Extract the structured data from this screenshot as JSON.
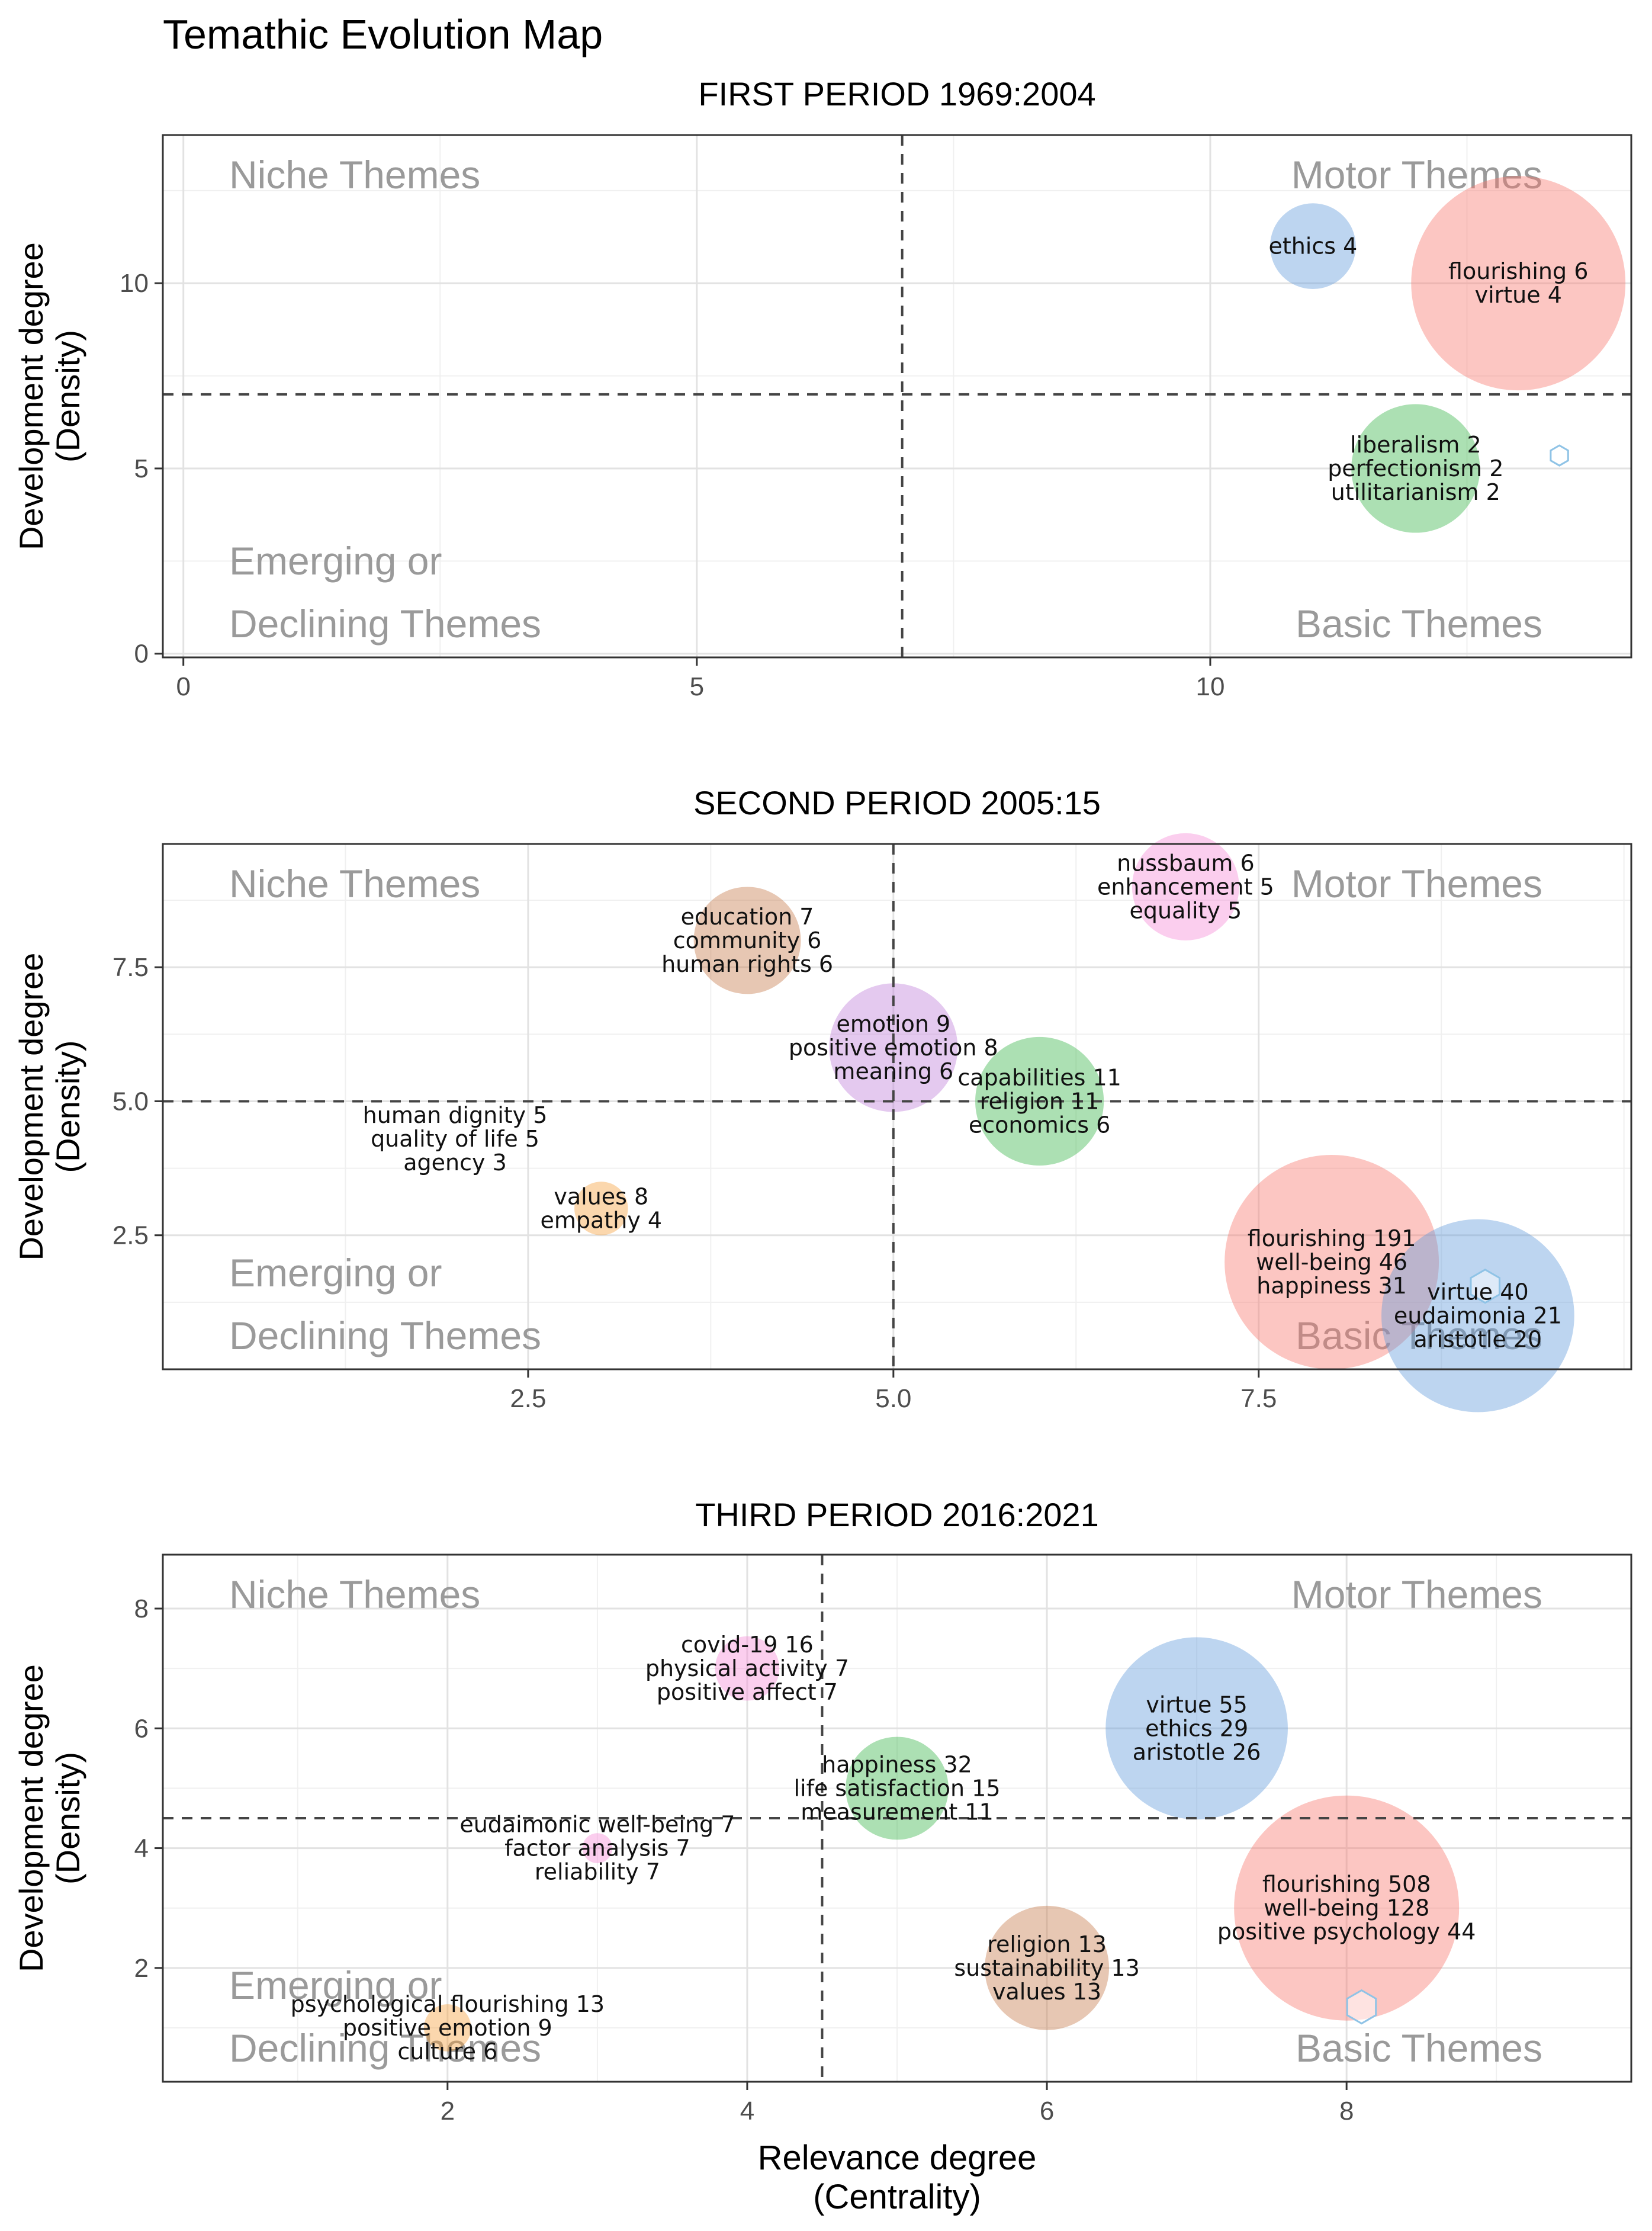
{
  "title": "Temathic Evolution Map",
  "xlabel": [
    "Relevance degree",
    "(Centrality)"
  ],
  "ylabel": [
    "Development degree",
    "(Density)"
  ],
  "quadrant_labels": {
    "niche": [
      "Niche Themes"
    ],
    "motor": [
      "Motor Themes"
    ],
    "emerging": [
      "Emerging or",
      "Declining Themes"
    ],
    "basic": [
      "Basic Themes"
    ]
  },
  "colors": {
    "red": "#F8766D",
    "blue": "#619CDB",
    "green": "#39B54A",
    "pink": "#F58BD6",
    "brown": "#C67A4A",
    "purple": "#BF7FDA",
    "orange": "#F5A03C",
    "hexagon": "#8FC3E6"
  },
  "chart_data": [
    {
      "type": "scatter",
      "title": "FIRST PERIOD 1969:2004",
      "xlim": [
        -0.2,
        14.1
      ],
      "ylim": [
        -0.1,
        14.0
      ],
      "xticks": [
        0,
        5,
        10
      ],
      "yticks": [
        0,
        5,
        10
      ],
      "vline": 7,
      "hline": 7,
      "show_xlabel": false,
      "points": [
        {
          "x": 11,
          "y": 11,
          "size": 4,
          "color": "blue",
          "labels": [
            "ethics 4"
          ]
        },
        {
          "x": 13,
          "y": 10,
          "size": 10,
          "color": "red",
          "labels": [
            "flourishing 6",
            "virtue 4"
          ]
        },
        {
          "x": 12,
          "y": 5,
          "size": 6,
          "color": "green",
          "labels": [
            "liberalism 2",
            "perfectionism 2",
            "utilitarianism 2"
          ]
        }
      ],
      "hexagons": [
        {
          "x": 13.4,
          "y": 5.35,
          "size": 0.5
        }
      ]
    },
    {
      "type": "scatter",
      "title": "SECOND PERIOD 2005:15",
      "xlim": [
        0,
        10.05
      ],
      "ylim": [
        0,
        9.8
      ],
      "xticks": [
        2.5,
        5.0,
        7.5
      ],
      "yticks": [
        2.5,
        5.0,
        7.5
      ],
      "vline": 5,
      "hline": 5,
      "show_xlabel": false,
      "points": [
        {
          "x": 7,
          "y": 9,
          "size": 5,
          "color": "pink",
          "labels": [
            "nussbaum 6",
            "enhancement 5",
            "equality 5"
          ]
        },
        {
          "x": 4,
          "y": 8,
          "size": 5,
          "color": "brown",
          "labels": [
            "education 7",
            "community 6",
            "human rights 6"
          ]
        },
        {
          "x": 5,
          "y": 6,
          "size": 6,
          "color": "purple",
          "labels": [
            "emotion 9",
            "positive emotion 8",
            "meaning 6"
          ]
        },
        {
          "x": 6,
          "y": 5,
          "size": 6,
          "color": "green",
          "labels": [
            "capabilities 11",
            "religion 11",
            "economics 6"
          ]
        },
        {
          "x": 2,
          "y": 4.3,
          "size": 0.001,
          "color": "purple",
          "labels": [
            "human dignity 5",
            "quality of life 5",
            "agency 3"
          ]
        },
        {
          "x": 3,
          "y": 3,
          "size": 2.5,
          "color": "orange",
          "labels": [
            "values 8",
            "empathy 4"
          ]
        },
        {
          "x": 8,
          "y": 2,
          "size": 10,
          "color": "red",
          "labels": [
            "flourishing 191",
            "well-being 46",
            "happiness 31"
          ]
        },
        {
          "x": 9,
          "y": 1,
          "size": 9,
          "color": "blue",
          "labels": [
            "virtue 40",
            "eudaimonia 21",
            "aristotle 20"
          ]
        }
      ],
      "hexagons": [
        {
          "x": 9.05,
          "y": 1.55,
          "size": 1.0
        }
      ]
    },
    {
      "type": "scatter",
      "title": "THIRD PERIOD 2016:2021",
      "xlim": [
        0.1,
        9.9
      ],
      "ylim": [
        0.1,
        8.9
      ],
      "xticks": [
        2,
        4,
        6,
        8
      ],
      "yticks": [
        2,
        4,
        6,
        8
      ],
      "vline": 4.5,
      "hline": 4.5,
      "show_xlabel": true,
      "points": [
        {
          "x": 4,
          "y": 7,
          "size": 3,
          "color": "pink",
          "labels": [
            "covid-19 16",
            "physical activity 7",
            "positive affect 7"
          ]
        },
        {
          "x": 7,
          "y": 6,
          "size": 8.5,
          "color": "blue",
          "labels": [
            "virtue 55",
            "ethics 29",
            "aristotle 26"
          ]
        },
        {
          "x": 5,
          "y": 5,
          "size": 4.8,
          "color": "green",
          "labels": [
            "happiness 32",
            "life satisfaction 15",
            "measurement 11"
          ]
        },
        {
          "x": 3,
          "y": 4,
          "size": 1.4,
          "color": "pink",
          "labels": [
            "eudaimonic well-being 7",
            "factor analysis 7",
            "reliability 7"
          ]
        },
        {
          "x": 8,
          "y": 3,
          "size": 10.5,
          "color": "red",
          "labels": [
            "flourishing 508",
            "well-being 128",
            "positive psychology 44"
          ]
        },
        {
          "x": 6,
          "y": 2,
          "size": 5.8,
          "color": "brown",
          "labels": [
            "religion 13",
            "sustainability 13",
            "values 13"
          ]
        },
        {
          "x": 2,
          "y": 1,
          "size": 2.2,
          "color": "orange",
          "labels": [
            "psychological flourishing 13",
            "positive emotion 9",
            "culture 6"
          ]
        }
      ],
      "hexagons": [
        {
          "x": 8.1,
          "y": 1.35,
          "size": 1.0
        }
      ]
    }
  ]
}
